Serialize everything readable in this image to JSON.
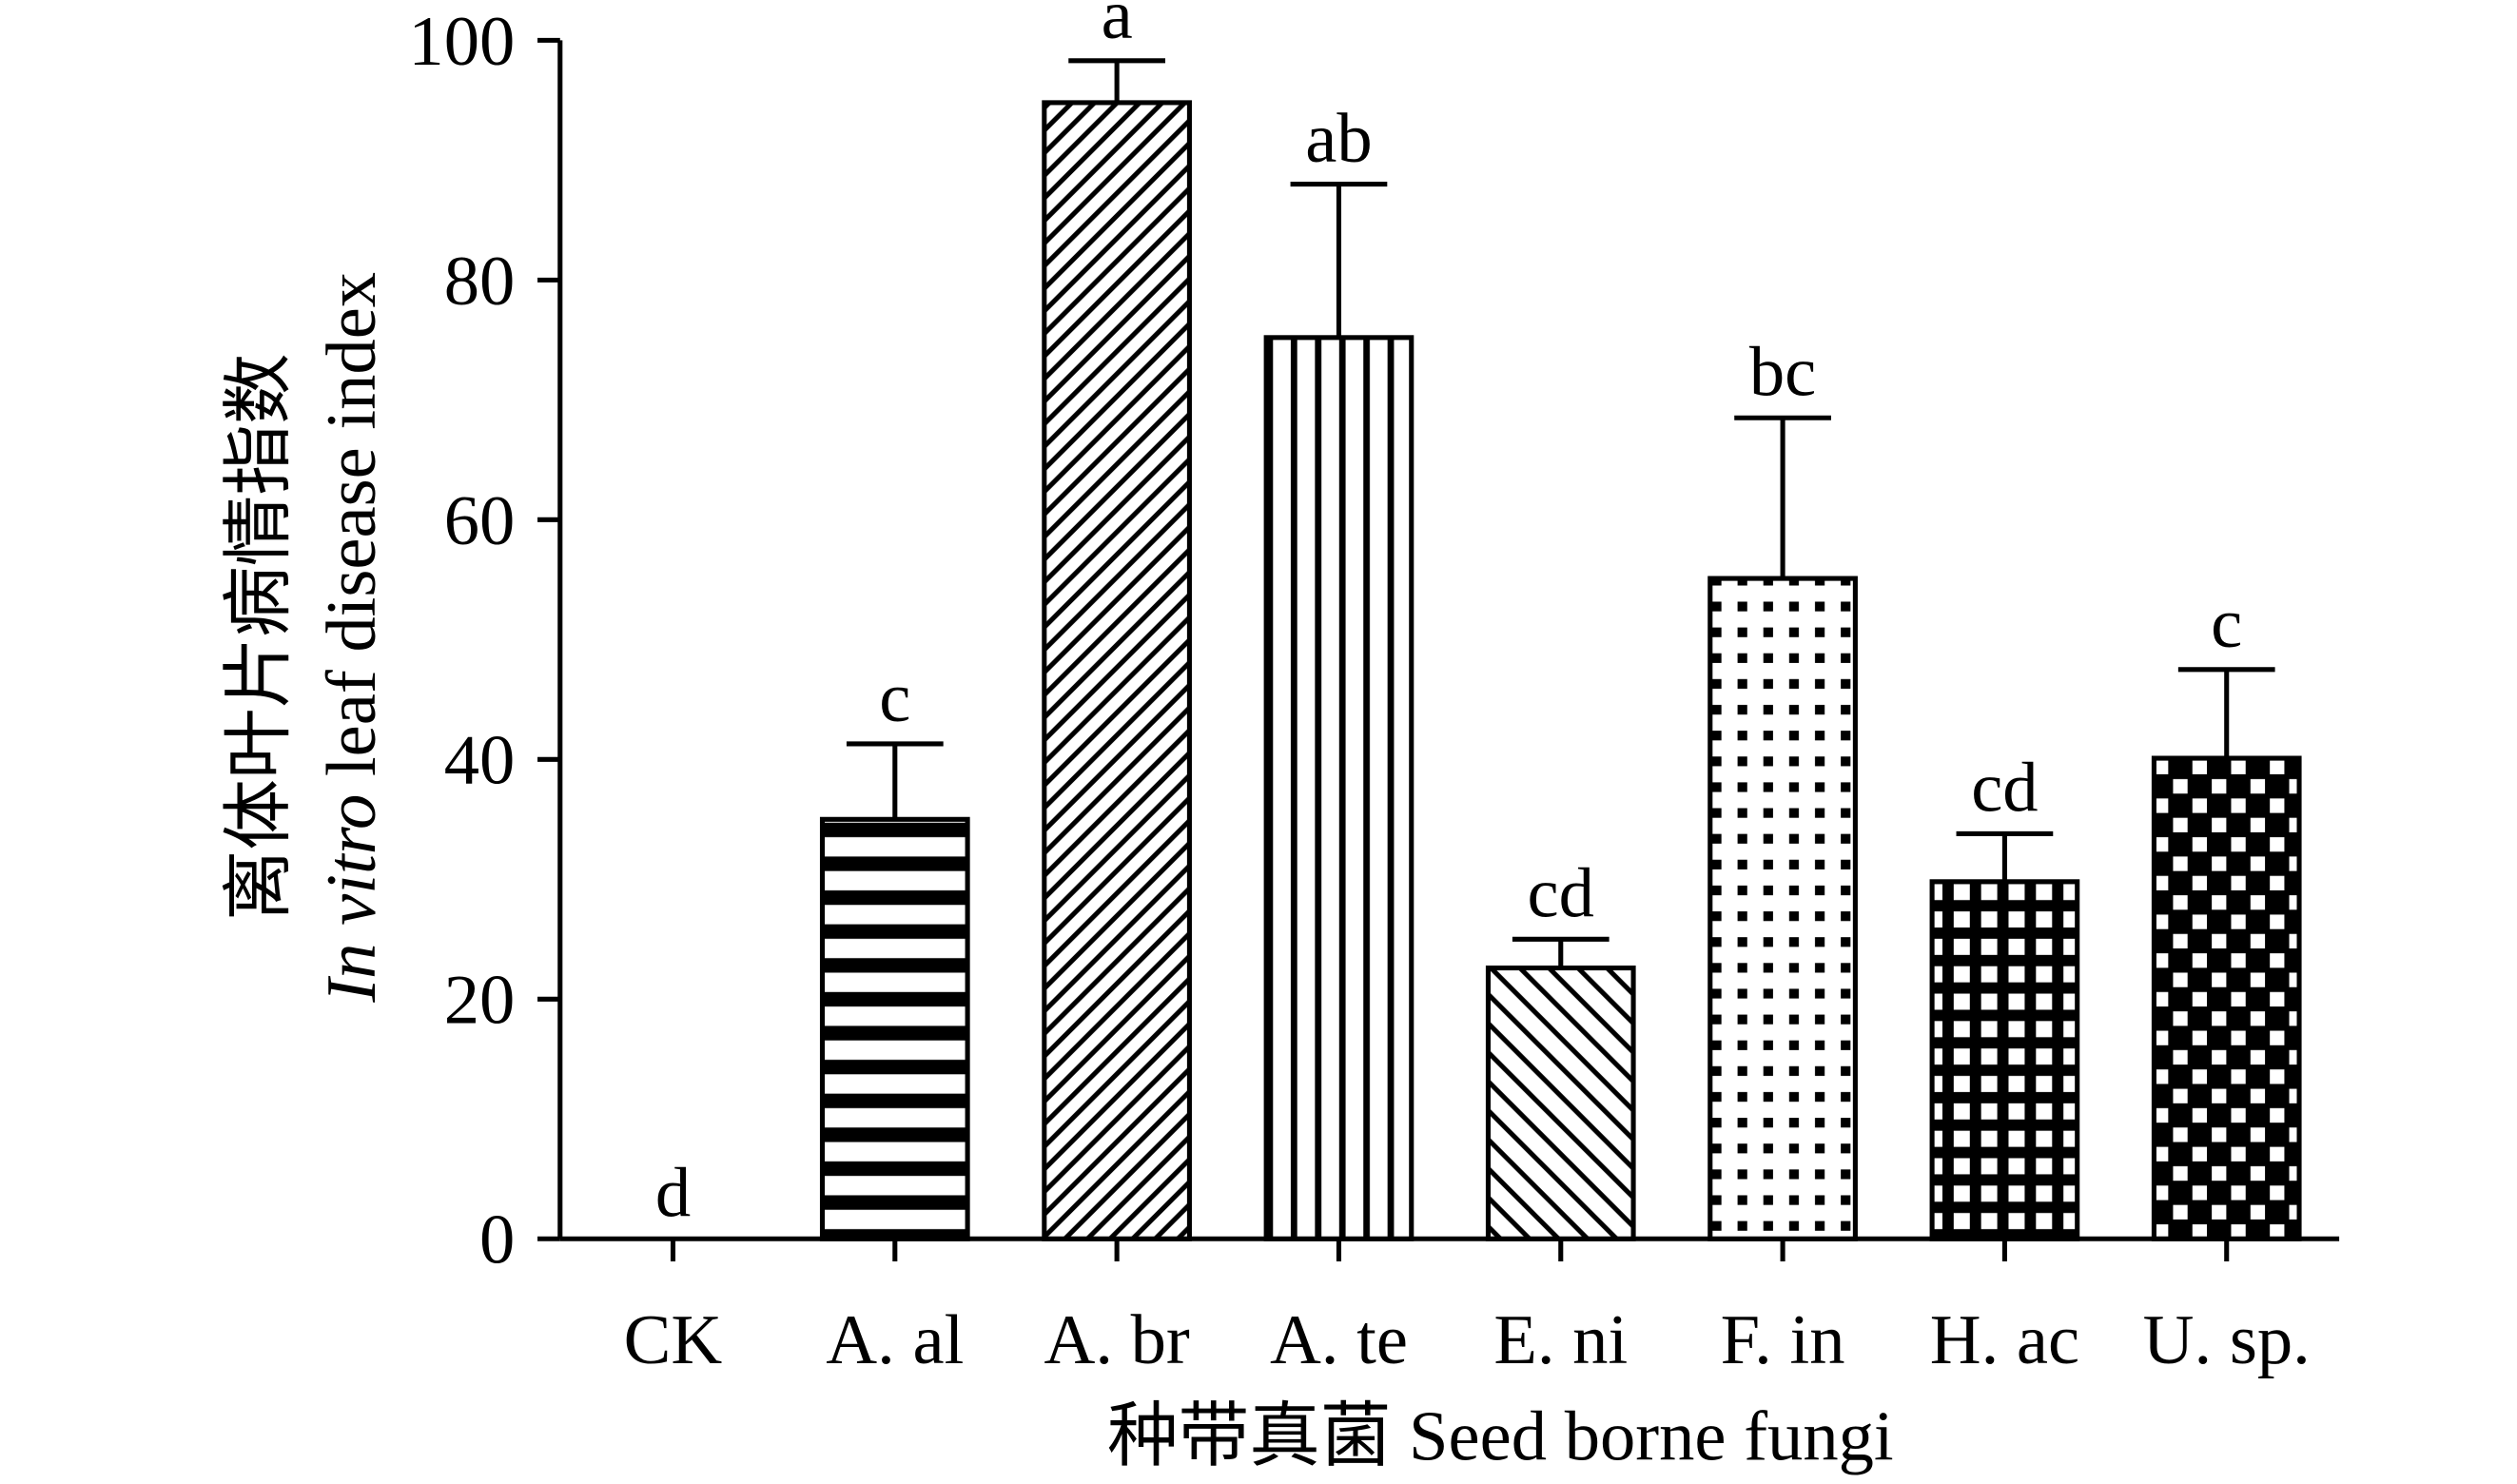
{
  "chart_data": {
    "type": "bar",
    "y_label": {
      "line1": "离体叶片病情指数",
      "italic": "In vitro",
      "rest": " leaf disease index"
    },
    "x_label": "种带真菌 Seed borne fungi",
    "categories": [
      "CK",
      "A. al",
      "A. br",
      "A. te",
      "E. ni",
      "F. in",
      "H. ac",
      "U. sp."
    ],
    "values": [
      0,
      35,
      94.8,
      75.2,
      22.6,
      55.1,
      29.8,
      40.1
    ],
    "errors": [
      0,
      6.3,
      3.5,
      12.8,
      2.4,
      13.4,
      4,
      7.4
    ],
    "letters": [
      "d",
      "c",
      "a",
      "ab",
      "cd",
      "bc",
      "cd",
      "c"
    ],
    "patterns": [
      "none",
      "hlines",
      "diag",
      "vlines",
      "antidiag",
      "dots",
      "grid",
      "checker"
    ],
    "color": "#000000",
    "ylim": [
      0,
      100
    ],
    "yticks": [
      0,
      20,
      40,
      60,
      80,
      100
    ]
  }
}
